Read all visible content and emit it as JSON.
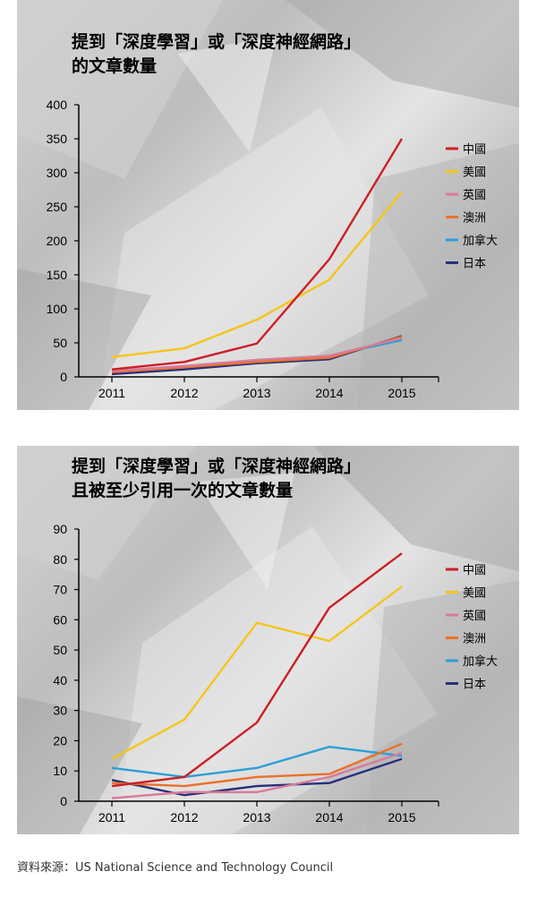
{
  "colors": {
    "中國": "#cc1f26",
    "美國": "#f5c519",
    "英國": "#d97a9b",
    "澳洲": "#ea7127",
    "加拿大": "#2a9fd8",
    "日本": "#27307a"
  },
  "source_note": "資料來源：US National Science and Technology Council",
  "chart_data": [
    {
      "type": "line",
      "title_line1": "提到「深度學習」或「深度神經網路」",
      "title_line2": "的文章數量",
      "x": [
        "2011",
        "2012",
        "2013",
        "2014",
        "2015"
      ],
      "ylim": [
        0,
        400
      ],
      "yticks": [
        0,
        50,
        100,
        150,
        200,
        250,
        300,
        350,
        400
      ],
      "legend_position": "right",
      "series": [
        {
          "name": "中國",
          "color": "#cc1f26",
          "values": [
            11,
            22,
            49,
            173,
            350
          ]
        },
        {
          "name": "美國",
          "color": "#f5c519",
          "values": [
            29,
            42,
            84,
            143,
            272
          ]
        },
        {
          "name": "英國",
          "color": "#d97a9b",
          "values": [
            9,
            16,
            25,
            31,
            57
          ]
        },
        {
          "name": "澳洲",
          "color": "#ea7127",
          "values": [
            7,
            14,
            22,
            28,
            59
          ]
        },
        {
          "name": "加拿大",
          "color": "#2a9fd8",
          "values": [
            8,
            15,
            24,
            31,
            54
          ]
        },
        {
          "name": "日本",
          "color": "#27307a",
          "values": [
            4,
            11,
            20,
            26,
            60
          ]
        }
      ]
    },
    {
      "type": "line",
      "title_line1": "提到「深度學習」或「深度神經網路」",
      "title_line2": "且被至少引用一次的文章數量",
      "x": [
        "2011",
        "2012",
        "2013",
        "2014",
        "2015"
      ],
      "ylim": [
        0,
        90
      ],
      "yticks": [
        0,
        10,
        20,
        30,
        40,
        50,
        60,
        70,
        80,
        90
      ],
      "legend_position": "right",
      "series": [
        {
          "name": "中國",
          "color": "#cc1f26",
          "values": [
            5,
            8,
            26,
            64,
            82
          ]
        },
        {
          "name": "美國",
          "color": "#f5c519",
          "values": [
            14,
            27,
            59,
            53,
            71
          ]
        },
        {
          "name": "英國",
          "color": "#d97a9b",
          "values": [
            1,
            3,
            3,
            8,
            16
          ]
        },
        {
          "name": "澳洲",
          "color": "#ea7127",
          "values": [
            6,
            5,
            8,
            9,
            19
          ]
        },
        {
          "name": "加拿大",
          "color": "#2a9fd8",
          "values": [
            11,
            8,
            11,
            18,
            15
          ]
        },
        {
          "name": "日本",
          "color": "#27307a",
          "values": [
            7,
            2,
            5,
            6,
            14
          ]
        }
      ]
    }
  ]
}
